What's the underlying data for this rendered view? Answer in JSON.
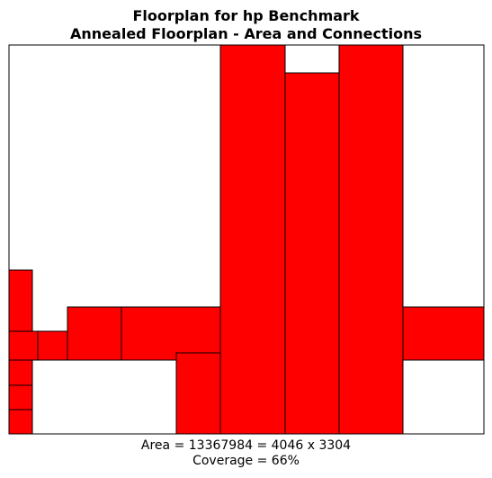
{
  "title_line1": "Floorplan for hp Benchmark",
  "title_line2": "Annealed Floorplan - Area and Connections",
  "area_text": "Area = 13367984 = 4046 x 3304",
  "coverage_text": "Coverage = 66%",
  "colors": {
    "block_fill": "#ff0000",
    "block_stroke": "#000000",
    "canvas_border": "#000000",
    "background": "#ffffff"
  }
}
